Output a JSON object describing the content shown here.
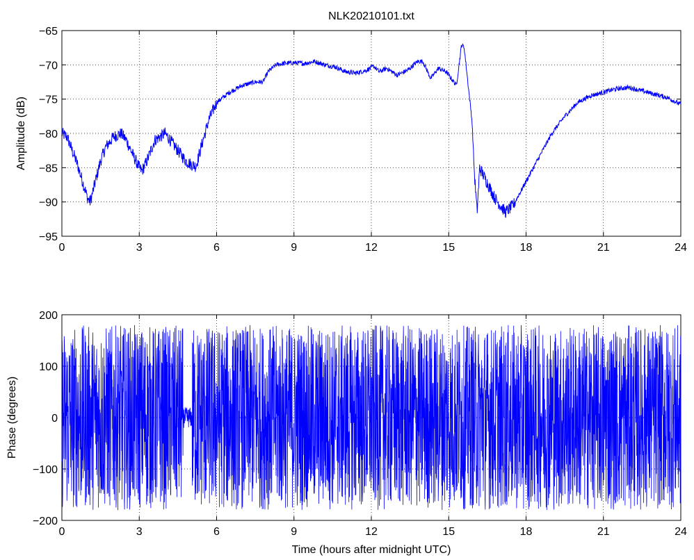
{
  "chart_data": [
    {
      "type": "line",
      "title": "NLK20210101.txt",
      "xlabel": "",
      "ylabel": "Amplitude (dB)",
      "xlim": [
        0,
        24
      ],
      "ylim": [
        -95,
        -65
      ],
      "xticks": [
        "0",
        "3",
        "6",
        "9",
        "12",
        "15",
        "18",
        "21",
        "24"
      ],
      "yticks": [
        "−65",
        "−70",
        "−75",
        "−80",
        "−85",
        "−90",
        "−95"
      ],
      "grid": true,
      "line_color": "#0000ff",
      "series": [
        {
          "x": [
            0,
            0.2,
            0.4,
            0.6,
            0.8,
            1.0,
            1.1,
            1.3,
            1.5,
            1.7,
            2.0,
            2.3,
            2.5,
            2.8,
            3.0,
            3.1,
            3.3,
            3.6,
            3.8,
            4.0,
            4.2,
            4.5,
            4.7,
            4.8,
            5.0,
            5.2,
            5.4,
            5.7,
            6.0,
            6.5,
            7.0,
            7.5,
            7.8,
            8.0,
            8.3,
            8.6,
            9.0,
            9.4,
            9.8,
            10.2,
            10.6,
            11.0,
            11.4,
            11.8,
            12.1,
            12.3,
            12.6,
            13.0,
            13.4,
            13.8,
            14.0,
            14.3,
            14.6,
            14.9,
            15.1,
            15.3,
            15.5,
            15.6,
            15.7,
            15.9,
            16.0,
            16.1,
            16.2,
            16.4,
            16.6,
            16.8,
            17.0,
            17.2,
            17.5,
            18.0,
            18.5,
            19.0,
            19.5,
            20.0,
            20.5,
            21.0,
            21.5,
            22.0,
            22.5,
            23.0,
            23.5,
            24.0
          ],
          "values": [
            -80.0,
            -80.5,
            -82.5,
            -84.5,
            -87.0,
            -89.5,
            -90.0,
            -87.0,
            -84.0,
            -82.0,
            -80.5,
            -80.0,
            -81.0,
            -83.5,
            -85.0,
            -85.5,
            -84.0,
            -81.0,
            -80.5,
            -80.0,
            -81.0,
            -82.5,
            -83.5,
            -84.0,
            -84.5,
            -84.8,
            -82.0,
            -78.0,
            -75.5,
            -74.0,
            -73.0,
            -72.5,
            -72.5,
            -71.0,
            -70.0,
            -69.8,
            -69.7,
            -69.8,
            -69.5,
            -70.0,
            -70.3,
            -71.0,
            -71.2,
            -70.8,
            -70.2,
            -71.0,
            -70.5,
            -71.5,
            -70.8,
            -69.5,
            -69.5,
            -72.0,
            -70.5,
            -71.0,
            -72.0,
            -73.0,
            -67.0,
            -67.5,
            -71.0,
            -78.0,
            -86.0,
            -91.5,
            -85.0,
            -86.5,
            -88.0,
            -89.5,
            -90.5,
            -91.5,
            -90.5,
            -87.0,
            -83.5,
            -80.0,
            -77.5,
            -75.5,
            -74.5,
            -74.0,
            -73.5,
            -73.3,
            -73.8,
            -74.3,
            -74.8,
            -75.8
          ]
        }
      ]
    },
    {
      "type": "line",
      "title": "",
      "xlabel": "Time (hours after midnight UTC)",
      "ylabel": "Phase (degrees)",
      "xlim": [
        0,
        24
      ],
      "ylim": [
        -200,
        200
      ],
      "xticks": [
        "0",
        "3",
        "6",
        "9",
        "12",
        "15",
        "18",
        "21",
        "24"
      ],
      "yticks": [
        "200",
        "100",
        "0",
        "−100",
        "−200"
      ],
      "grid": true,
      "line_color": "#0000ff",
      "phase_range": [
        -180,
        180
      ],
      "series": [
        {
          "x_range": [
            0,
            24
          ],
          "values_range": [
            -180,
            180
          ]
        }
      ]
    }
  ]
}
